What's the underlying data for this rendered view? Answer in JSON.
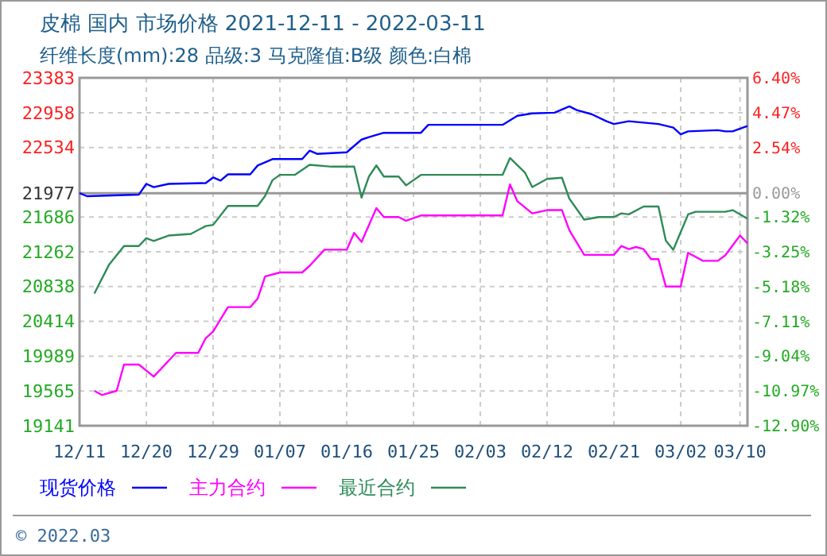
{
  "chart_data": {
    "type": "line",
    "title": "皮棉 国内 市场价格 2021-12-11 - 2022-03-11",
    "subtitle": "纤维长度(mm):28 品级:3 马克隆值:B级 颜色:白棉",
    "annotations": [
      "© 2022.03"
    ],
    "xlim": [
      "2021-12-11",
      "2022-03-11"
    ],
    "xticks": [
      {
        "value": "2021-12-11",
        "label": "12/11"
      },
      {
        "value": "2021-12-20",
        "label": "12/20"
      },
      {
        "value": "2021-12-29",
        "label": "12/29"
      },
      {
        "value": "2022-01-07",
        "label": "01/07"
      },
      {
        "value": "2022-01-16",
        "label": "01/16"
      },
      {
        "value": "2022-01-25",
        "label": "01/25"
      },
      {
        "value": "2022-02-03",
        "label": "02/03"
      },
      {
        "value": "2022-02-12",
        "label": "02/12"
      },
      {
        "value": "2022-02-21",
        "label": "02/21"
      },
      {
        "value": "2022-03-02",
        "label": "03/02"
      },
      {
        "value": "2022-03-10",
        "label": "03/10"
      }
    ],
    "ylim": [
      19141,
      23383
    ],
    "yticks": [
      19141,
      19565,
      19989,
      20414,
      20838,
      21262,
      21686,
      21977,
      22534,
      22958,
      23383
    ],
    "y2lim": [
      -12.9,
      6.4
    ],
    "y2ticks": [
      {
        "value": -12.9,
        "label": "-12.90%"
      },
      {
        "value": -10.97,
        "label": "-10.97%"
      },
      {
        "value": -9.04,
        "label": "-9.04%"
      },
      {
        "value": -7.11,
        "label": "-7.11%"
      },
      {
        "value": -5.18,
        "label": "-5.18%"
      },
      {
        "value": -3.25,
        "label": "-3.25%"
      },
      {
        "value": -1.32,
        "label": "-1.32%"
      },
      {
        "value": 0,
        "label": "0.00%"
      },
      {
        "value": 2.54,
        "label": "2.54%"
      },
      {
        "value": 4.47,
        "label": "4.47%"
      },
      {
        "value": 6.4,
        "label": "6.40%"
      }
    ],
    "ref_lines": [
      {
        "axis": "y2",
        "value": 0,
        "color": "#999999"
      }
    ],
    "grid": true,
    "legend": "bottom",
    "line_style": "solid",
    "marker": "none",
    "series": [
      {
        "name": "现货价格",
        "color": "#0000ff",
        "x": [
          "2021-12-11",
          "2021-12-12",
          "2021-12-19",
          "2021-12-20",
          "2021-12-21",
          "2021-12-23",
          "2021-12-28",
          "2021-12-29",
          "2021-12-30",
          "2021-12-31",
          "2022-01-03",
          "2022-01-04",
          "2022-01-06",
          "2022-01-10",
          "2022-01-11",
          "2022-01-12",
          "2022-01-16",
          "2022-01-18",
          "2022-01-19",
          "2022-01-21",
          "2022-01-26",
          "2022-01-27",
          "2022-02-06",
          "2022-02-08",
          "2022-02-10",
          "2022-02-13",
          "2022-02-15",
          "2022-02-16",
          "2022-02-18",
          "2022-02-20",
          "2022-02-21",
          "2022-02-23",
          "2022-02-27",
          "2022-03-01",
          "2022-03-02",
          "2022-03-03",
          "2022-03-07",
          "2022-03-08",
          "2022-03-09",
          "2022-03-11"
        ],
        "values": [
          21977,
          21940,
          21960,
          22090,
          22050,
          22090,
          22100,
          22168,
          22130,
          22206,
          22206,
          22314,
          22392,
          22392,
          22495,
          22456,
          22475,
          22630,
          22660,
          22713,
          22713,
          22810,
          22810,
          22920,
          22950,
          22958,
          23035,
          22990,
          22940,
          22854,
          22820,
          22854,
          22820,
          22777,
          22694,
          22730,
          22745,
          22730,
          22730,
          22796
        ]
      },
      {
        "name": "主力合约",
        "color": "#ff00ff",
        "x": [
          "2021-12-13",
          "2021-12-14",
          "2021-12-16",
          "2021-12-17",
          "2021-12-19",
          "2021-12-21",
          "2021-12-24",
          "2021-12-27",
          "2021-12-28",
          "2021-12-29",
          "2021-12-31",
          "2022-01-03",
          "2022-01-04",
          "2022-01-05",
          "2022-01-07",
          "2022-01-10",
          "2022-01-11",
          "2022-01-13",
          "2022-01-16",
          "2022-01-17",
          "2022-01-18",
          "2022-01-20",
          "2022-01-21",
          "2022-01-23",
          "2022-01-24",
          "2022-01-26",
          "2022-02-06",
          "2022-02-07",
          "2022-02-08",
          "2022-02-10",
          "2022-02-12",
          "2022-02-14",
          "2022-02-15",
          "2022-02-17",
          "2022-02-21",
          "2022-02-22",
          "2022-02-23",
          "2022-02-24",
          "2022-02-25",
          "2022-02-26",
          "2022-02-27",
          "2022-02-28",
          "2022-03-02",
          "2022-03-03",
          "2022-03-05",
          "2022-03-07",
          "2022-03-08",
          "2022-03-10",
          "2022-03-11"
        ],
        "values": [
          19567,
          19516,
          19567,
          19887,
          19887,
          19740,
          20030,
          20030,
          20208,
          20290,
          20588,
          20588,
          20690,
          20960,
          21010,
          21010,
          21090,
          21287,
          21287,
          21493,
          21383,
          21794,
          21686,
          21686,
          21640,
          21705,
          21705,
          22083,
          21878,
          21730,
          21770,
          21770,
          21525,
          21224,
          21224,
          21333,
          21295,
          21320,
          21295,
          21172,
          21172,
          20838,
          20838,
          21250,
          21152,
          21152,
          21218,
          21461,
          21365
        ]
      },
      {
        "name": "最近合约",
        "color": "#2e8b57",
        "x": [
          "2021-12-13",
          "2021-12-15",
          "2021-12-17",
          "2021-12-19",
          "2021-12-20",
          "2021-12-21",
          "2021-12-23",
          "2021-12-26",
          "2021-12-28",
          "2021-12-29",
          "2021-12-31",
          "2022-01-04",
          "2022-01-05",
          "2022-01-06",
          "2022-01-07",
          "2022-01-09",
          "2022-01-11",
          "2022-01-14",
          "2022-01-17",
          "2022-01-18",
          "2022-01-19",
          "2022-01-20",
          "2022-01-21",
          "2022-01-23",
          "2022-01-24",
          "2022-01-26",
          "2022-02-06",
          "2022-02-07",
          "2022-02-09",
          "2022-02-10",
          "2022-02-12",
          "2022-02-14",
          "2022-02-15",
          "2022-02-17",
          "2022-02-19",
          "2022-02-21",
          "2022-02-22",
          "2022-02-23",
          "2022-02-25",
          "2022-02-27",
          "2022-02-28",
          "2022-03-01",
          "2022-03-03",
          "2022-03-04",
          "2022-03-08",
          "2022-03-09",
          "2022-03-11"
        ],
        "values": [
          20754,
          21108,
          21332,
          21332,
          21428,
          21395,
          21460,
          21480,
          21576,
          21590,
          21821,
          21821,
          21942,
          22135,
          22200,
          22200,
          22322,
          22300,
          22300,
          21923,
          22180,
          22315,
          22180,
          22180,
          22072,
          22200,
          22200,
          22405,
          22230,
          22052,
          22150,
          22165,
          21910,
          21654,
          21686,
          21686,
          21730,
          21718,
          21814,
          21814,
          21397,
          21287,
          21718,
          21750,
          21750,
          21770,
          21667
        ]
      }
    ]
  }
}
